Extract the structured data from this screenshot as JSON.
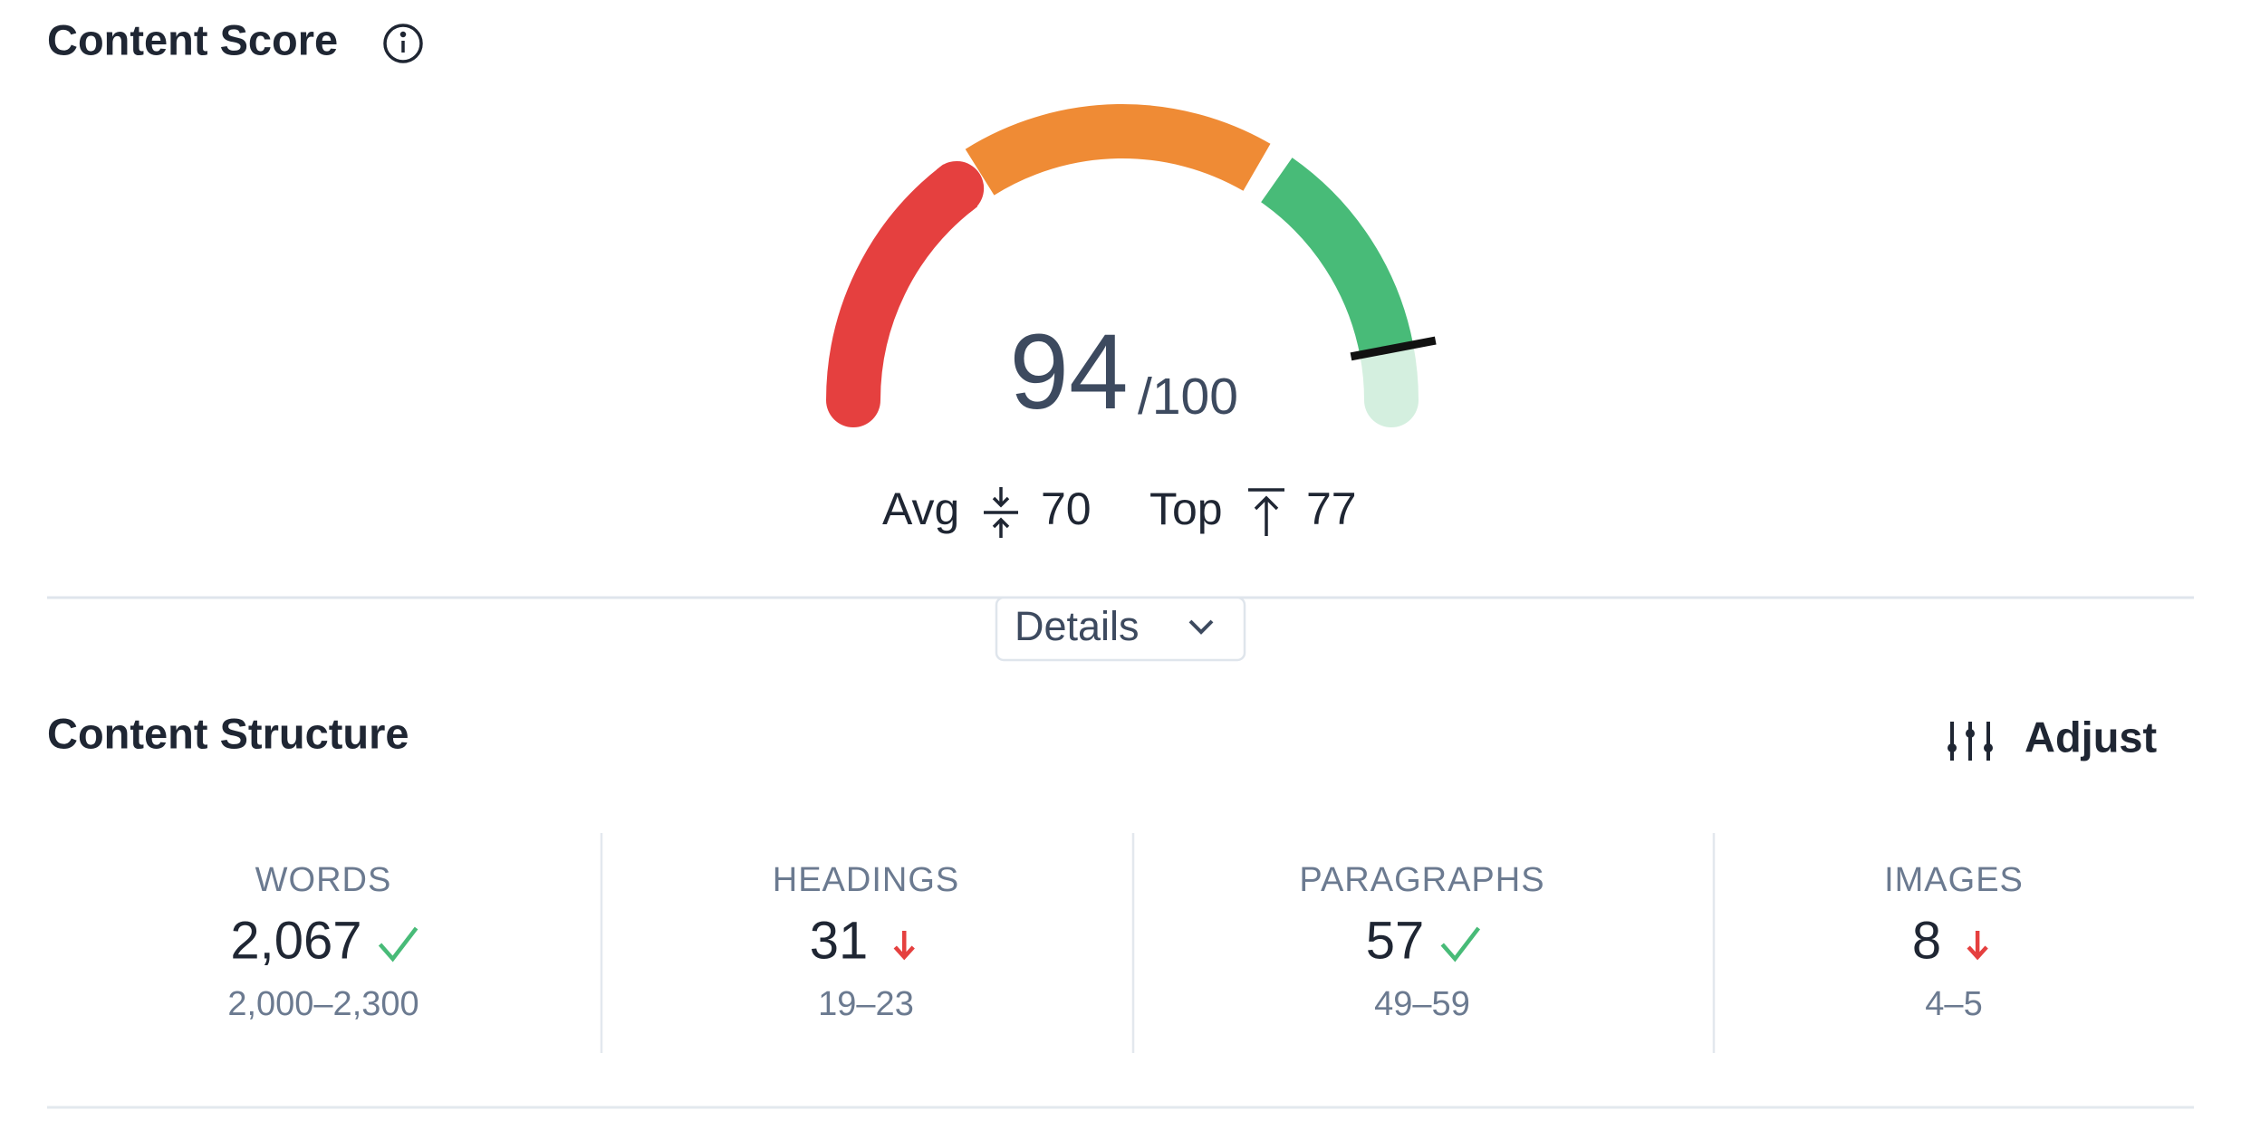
{
  "header": {
    "title": "Content Score"
  },
  "score": {
    "value": 94,
    "max_label": "/100",
    "avg_label": "Avg",
    "avg": 70,
    "top_label": "Top",
    "top": 77
  },
  "details_button": "Details",
  "structure": {
    "title": "Content Structure",
    "adjust": "Adjust",
    "metrics": [
      {
        "label": "WORDS",
        "value": "2,067",
        "icon": "check",
        "range": "2,000–2,300"
      },
      {
        "label": "HEADINGS",
        "value": "31",
        "icon": "arrow-down",
        "range": "19–23"
      },
      {
        "label": "PARAGRAPHS",
        "value": "57",
        "icon": "check",
        "range": "49–59"
      },
      {
        "label": "IMAGES",
        "value": "8",
        "icon": "arrow-down",
        "range": "4–5"
      }
    ]
  }
}
